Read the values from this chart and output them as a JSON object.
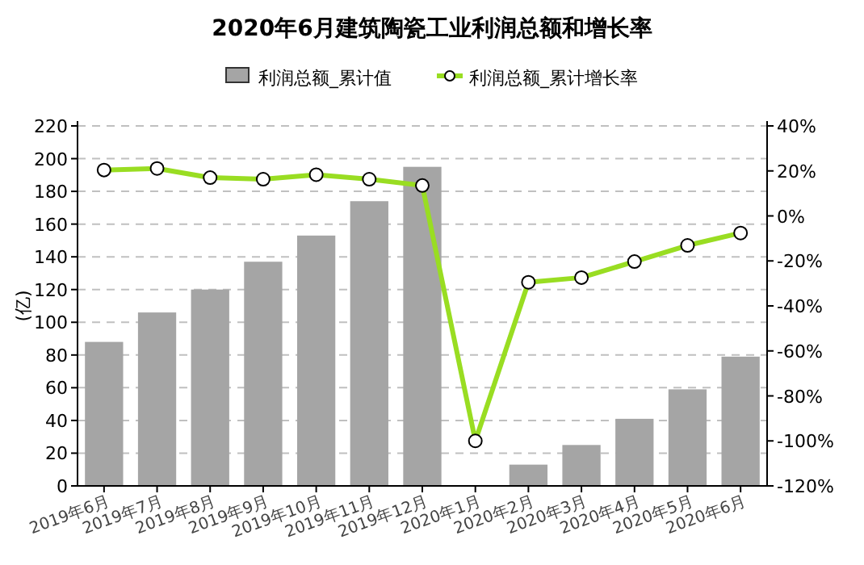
{
  "chart_data": {
    "type": "bar",
    "title": "2020年6月建筑陶瓷工业利润总额和增长率",
    "ylabel": "(亿)",
    "categories": [
      "2019年6月",
      "2019年7月",
      "2019年8月",
      "2019年9月",
      "2019年10月",
      "2019年11月",
      "2019年12月",
      "2020年1月",
      "2020年2月",
      "2020年3月",
      "2020年4月",
      "2020年5月",
      "2020年6月"
    ],
    "series": [
      {
        "name": "利润总额_累计值",
        "color": "#a5a5a5",
        "values": [
          88,
          106,
          120,
          137,
          153,
          174,
          195,
          null,
          13,
          25,
          41,
          59,
          79
        ]
      },
      {
        "name": "利润总额_累计增长率",
        "type": "line",
        "axis": "y2",
        "color": "#99dd22",
        "marker": "circle",
        "values": [
          20.4,
          21.1,
          17,
          16.3,
          18.3,
          16.3,
          13.5,
          -100,
          -29.5,
          -27.4,
          -20.3,
          -13.1,
          -7.6
        ]
      }
    ],
    "ylim": [
      0,
      220
    ],
    "yticks": [
      0,
      20,
      40,
      60,
      80,
      100,
      120,
      140,
      160,
      180,
      200,
      220
    ],
    "y2lim": [
      -120,
      40
    ],
    "y2ticks": [
      {
        "value": -120,
        "label": "-120%"
      },
      {
        "value": -100,
        "label": "-100%"
      },
      {
        "value": -80,
        "label": "-80%"
      },
      {
        "value": -60,
        "label": "-60%"
      },
      {
        "value": -40,
        "label": "-40%"
      },
      {
        "value": -20,
        "label": "-20%"
      },
      {
        "value": 0,
        "label": "0%"
      },
      {
        "value": 20,
        "label": "20%"
      },
      {
        "value": 40,
        "label": "40%"
      }
    ],
    "grid": "y",
    "legend": "top",
    "line_style": "solid"
  }
}
